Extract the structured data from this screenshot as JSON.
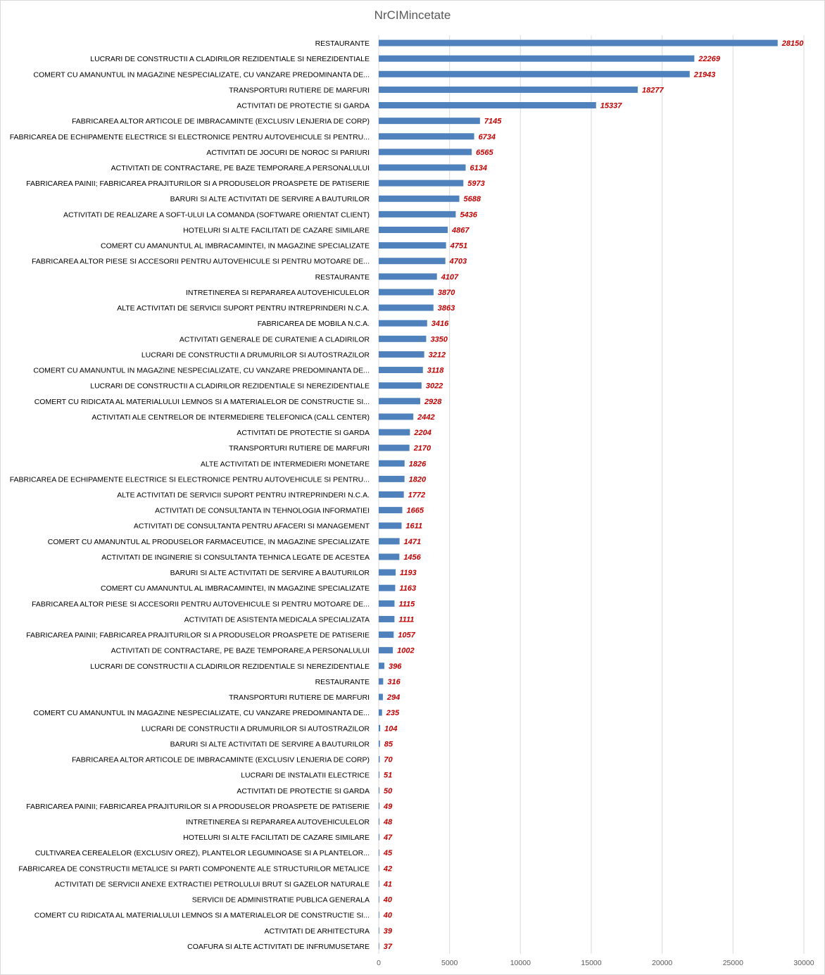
{
  "chart_data": {
    "type": "bar",
    "orientation": "horizontal",
    "title": "NrCIMincetate",
    "xlabel": "",
    "ylabel": "",
    "xlim": [
      0,
      30000
    ],
    "x_ticks": [
      "0",
      "5000",
      "10000",
      "15000",
      "20000",
      "25000",
      "30000"
    ],
    "grid": true,
    "legend": "none",
    "bar_color": "#4f81bd",
    "label_color": "#c00000",
    "categories": [
      "RESTAURANTE",
      "LUCRARI DE CONSTRUCTII A CLADIRILOR REZIDENTIALE SI NEREZIDENTIALE",
      "COMERT CU AMANUNTUL IN MAGAZINE NESPECIALIZATE, CU VANZARE PREDOMINANTA DE...",
      "TRANSPORTURI RUTIERE DE MARFURI",
      "ACTIVITATI DE PROTECTIE SI GARDA",
      "FABRICAREA ALTOR ARTICOLE DE IMBRACAMINTE (EXCLUSIV LENJERIA DE CORP)",
      "FABRICAREA DE ECHIPAMENTE ELECTRICE SI ELECTRONICE PENTRU AUTOVEHICULE SI PENTRU...",
      "ACTIVITATI  DE JOCURI DE NOROC SI PARIURI",
      "ACTIVITATI DE CONTRACTARE, PE BAZE TEMPORARE,A PERSONALULUI",
      "FABRICAREA PAINII; FABRICAREA PRAJITURILOR SI A PRODUSELOR PROASPETE DE PATISERIE",
      "BARURI SI ALTE ACTIVITATI DE SERVIRE A BAUTURILOR",
      "ACTIVITATI DE REALIZARE A SOFT-ULUI LA COMANDA (SOFTWARE ORIENTAT CLIENT)",
      "HOTELURI SI ALTE FACILITATI DE CAZARE SIMILARE",
      "COMERT CU AMANUNTUL AL IMBRACAMINTEI, IN MAGAZINE SPECIALIZATE",
      "FABRICAREA ALTOR PIESE SI ACCESORII PENTRU AUTOVEHICULE SI PENTRU MOTOARE DE...",
      "RESTAURANTE",
      "INTRETINEREA SI REPARAREA AUTOVEHICULELOR",
      "ALTE ACTIVITATI DE SERVICII SUPORT PENTRU INTREPRINDERI N.C.A.",
      "FABRICAREA DE MOBILA N.C.A.",
      "ACTIVITATI GENERALE DE CURATENIE A CLADIRILOR",
      "LUCRARI DE CONSTRUCTII A DRUMURILOR SI AUTOSTRAZILOR",
      "COMERT CU AMANUNTUL IN MAGAZINE NESPECIALIZATE, CU VANZARE PREDOMINANTA DE...",
      "LUCRARI DE CONSTRUCTII A CLADIRILOR REZIDENTIALE SI NEREZIDENTIALE",
      "COMERT CU RIDICATA AL MATERIALULUI LEMNOS SI A MATERIALELOR DE CONSTRUCTIE SI...",
      "ACTIVITATI ALE CENTRELOR DE INTERMEDIERE TELEFONICA (CALL CENTER)",
      "ACTIVITATI DE PROTECTIE SI GARDA",
      "TRANSPORTURI RUTIERE DE MARFURI",
      "ALTE ACTIVITATI DE INTERMEDIERI MONETARE",
      "FABRICAREA DE ECHIPAMENTE ELECTRICE SI ELECTRONICE PENTRU AUTOVEHICULE SI PENTRU...",
      "ALTE ACTIVITATI DE SERVICII SUPORT PENTRU INTREPRINDERI N.C.A.",
      "ACTIVITATI DE CONSULTANTA IN TEHNOLOGIA INFORMATIEI",
      "ACTIVITATI DE CONSULTANTA PENTRU AFACERI SI MANAGEMENT",
      "COMERT CU AMANUNTUL AL PRODUSELOR FARMACEUTICE, IN MAGAZINE SPECIALIZATE",
      "ACTIVITATI DE INGINERIE SI CONSULTANTA TEHNICA LEGATE DE ACESTEA",
      "BARURI SI ALTE ACTIVITATI DE SERVIRE A BAUTURILOR",
      "COMERT CU AMANUNTUL AL IMBRACAMINTEI, IN MAGAZINE SPECIALIZATE",
      "FABRICAREA ALTOR PIESE SI ACCESORII PENTRU AUTOVEHICULE SI PENTRU MOTOARE DE...",
      "ACTIVITATI DE ASISTENTA MEDICALA SPECIALIZATA",
      "FABRICAREA PAINII; FABRICAREA PRAJITURILOR SI A PRODUSELOR PROASPETE DE PATISERIE",
      "ACTIVITATI DE CONTRACTARE, PE BAZE TEMPORARE,A PERSONALULUI",
      "LUCRARI DE CONSTRUCTII A CLADIRILOR REZIDENTIALE SI NEREZIDENTIALE",
      "RESTAURANTE",
      "TRANSPORTURI RUTIERE DE MARFURI",
      "COMERT CU AMANUNTUL IN MAGAZINE NESPECIALIZATE, CU VANZARE PREDOMINANTA DE...",
      "LUCRARI DE CONSTRUCTII A DRUMURILOR SI AUTOSTRAZILOR",
      "BARURI SI ALTE ACTIVITATI DE SERVIRE A BAUTURILOR",
      "FABRICAREA ALTOR ARTICOLE DE IMBRACAMINTE (EXCLUSIV LENJERIA DE CORP)",
      "LUCRARI DE INSTALATII ELECTRICE",
      "ACTIVITATI DE PROTECTIE SI GARDA",
      "FABRICAREA PAINII; FABRICAREA PRAJITURILOR SI A PRODUSELOR PROASPETE DE PATISERIE",
      "INTRETINEREA SI REPARAREA AUTOVEHICULELOR",
      "HOTELURI SI ALTE FACILITATI DE CAZARE SIMILARE",
      "CULTIVAREA CEREALELOR (EXCLUSIV OREZ), PLANTELOR LEGUMINOASE SI A PLANTELOR...",
      "FABRICAREA DE CONSTRUCTII METALICE SI PARTI COMPONENTE ALE STRUCTURILOR METALICE",
      "ACTIVITATI DE SERVICII ANEXE EXTRACTIEI PETROLULUI BRUT SI GAZELOR NATURALE",
      "SERVICII  DE ADMINISTRATIE PUBLICA GENERALA",
      "COMERT CU RIDICATA AL MATERIALULUI LEMNOS SI A MATERIALELOR DE CONSTRUCTIE SI...",
      "ACTIVITATI DE ARHITECTURA",
      "COAFURA SI ALTE ACTIVITATI DE INFRUMUSETARE"
    ],
    "values": [
      28150,
      22269,
      21943,
      18277,
      15337,
      7145,
      6734,
      6565,
      6134,
      5973,
      5688,
      5436,
      4867,
      4751,
      4703,
      4107,
      3870,
      3863,
      3416,
      3350,
      3212,
      3118,
      3022,
      2928,
      2442,
      2204,
      2170,
      1826,
      1820,
      1772,
      1665,
      1611,
      1471,
      1456,
      1193,
      1163,
      1115,
      1111,
      1057,
      1002,
      396,
      316,
      294,
      235,
      104,
      85,
      70,
      51,
      50,
      49,
      48,
      47,
      45,
      42,
      41,
      40,
      40,
      39,
      37
    ]
  }
}
